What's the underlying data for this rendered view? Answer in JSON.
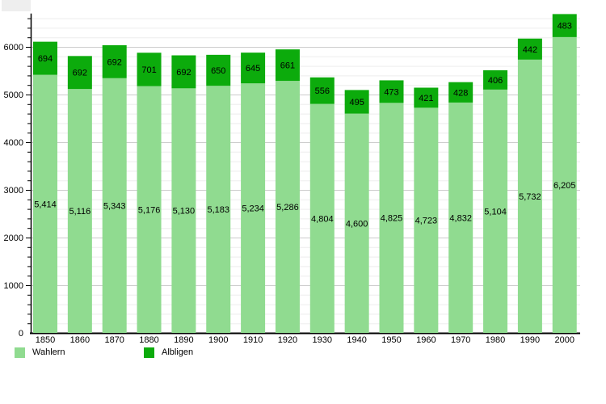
{
  "chart_data": {
    "type": "bar",
    "stacked": true,
    "title": "",
    "xlabel": "",
    "ylabel": "",
    "categories": [
      "1850",
      "1860",
      "1870",
      "1880",
      "1890",
      "1900",
      "1910",
      "1920",
      "1930",
      "1940",
      "1950",
      "1960",
      "1970",
      "1980",
      "1990",
      "2000"
    ],
    "series": [
      {
        "name": "Wahlern",
        "color": "#90db90",
        "values": [
          5414,
          5116,
          5343,
          5176,
          5130,
          5183,
          5234,
          5286,
          4804,
          4600,
          4825,
          4723,
          4832,
          5104,
          5732,
          6205
        ]
      },
      {
        "name": "Albligen",
        "color": "#0cab0c",
        "values": [
          694,
          692,
          692,
          701,
          692,
          650,
          645,
          661,
          556,
          495,
          473,
          421,
          428,
          406,
          442,
          483
        ]
      }
    ],
    "ylim": [
      0,
      6700
    ],
    "yticklabels": [
      "0",
      "1000",
      "2000",
      "3000",
      "4000",
      "5000",
      "6000"
    ],
    "ytick_major_step": 1000,
    "ytick_minor_step": 200,
    "grid": true,
    "gridline_major_color": "#cccccc",
    "gridline_minor_color": "#eeeeee",
    "axis_color": "#000000",
    "label_color": "#000000",
    "bar_value_labels": true,
    "legend_position": "bottom-left"
  }
}
